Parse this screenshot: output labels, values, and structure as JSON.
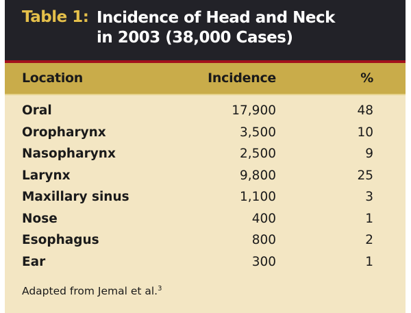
{
  "title": {
    "label": "Table 1:",
    "line1": "Incidence of Head and Neck",
    "line2": "in 2003 (38,000 Cases)"
  },
  "columns": [
    "Location",
    "Incidence",
    "%"
  ],
  "rows": [
    {
      "location": "Oral",
      "incidence": "17,900",
      "pct": "48"
    },
    {
      "location": "Oropharynx",
      "incidence": "3,500",
      "pct": "10"
    },
    {
      "location": "Nasopharynx",
      "incidence": "2,500",
      "pct": "9"
    },
    {
      "location": "Larynx",
      "incidence": "9,800",
      "pct": "25"
    },
    {
      "location": "Maxillary sinus",
      "incidence": "1,100",
      "pct": "3"
    },
    {
      "location": "Nose",
      "incidence": "400",
      "pct": "1"
    },
    {
      "location": "Esophagus",
      "incidence": "800",
      "pct": "2"
    },
    {
      "location": "Ear",
      "incidence": "300",
      "pct": "1"
    }
  ],
  "footnote": {
    "text": "Adapted from Jemal et al.",
    "ref": "3"
  },
  "colors": {
    "title_bg": "#222228",
    "accent_red": "#a3121c",
    "header_bg": "#c9ac4a",
    "body_bg": "#f3e6c3",
    "label_gold": "#e4bf4a"
  }
}
